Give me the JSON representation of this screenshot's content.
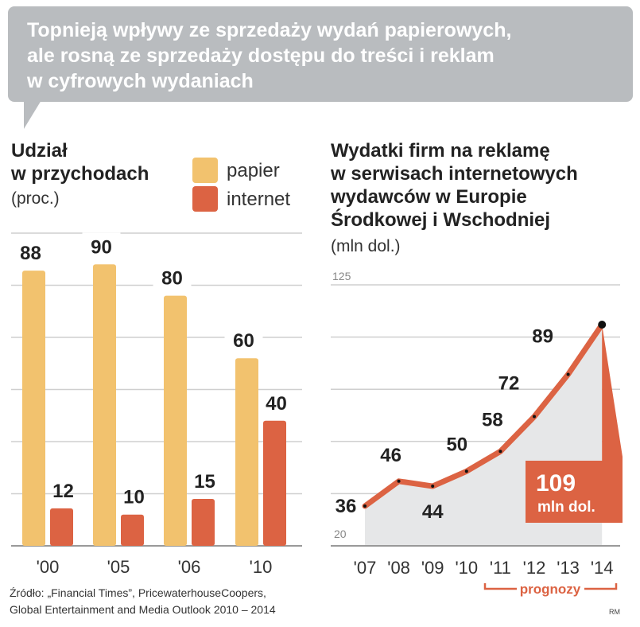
{
  "headline": [
    "Topnieją wpływy ze sprzedaży wydań papierowych,",
    "ale rosną ze sprzedaży dostępu do treści i reklam",
    "w cyfrowych wydaniach"
  ],
  "left": {
    "title": [
      "Udział",
      "w przychodach"
    ],
    "unit": "(proc.)",
    "legend": [
      "papier",
      "internet"
    ]
  },
  "right": {
    "title": [
      "Wydatki firm na reklamę",
      "w serwisach internetowych",
      "wydawców w Europie",
      "Środkowej i Wschodniej"
    ],
    "unit": "(mln dol.)",
    "callout_value": "109",
    "callout_unit": "mln dol.",
    "forecast_label": "prognozy"
  },
  "source": [
    "Źródło: „Financial Times”, PricewaterhouseCoopers,",
    "Global Entertainment and  Media Outlook 2010 – 2014"
  ],
  "credit": "RM",
  "colors": {
    "paper": "#f2c26e",
    "internet": "#dc6343",
    "grid": "#cfcfcf",
    "area": "#e6e7e8"
  },
  "chart_data": [
    {
      "type": "bar",
      "title": "Udział w przychodach",
      "ylabel": "(proc.)",
      "categories": [
        "'00",
        "'05",
        "'06",
        "'10"
      ],
      "ylim": [
        0,
        100
      ],
      "series": [
        {
          "name": "papier",
          "values": [
            88,
            90,
            80,
            60
          ]
        },
        {
          "name": "internet",
          "values": [
            12,
            10,
            15,
            40
          ]
        }
      ]
    },
    {
      "type": "line",
      "title": "Wydatki firm na reklamę w serwisach internetowych wydawców w Europie Środkowej i Wschodniej",
      "ylabel": "(mln dol.)",
      "x": [
        "'07",
        "'08",
        "'09",
        "'10",
        "'11",
        "'12",
        "'13",
        "'14"
      ],
      "values": [
        36,
        46,
        44,
        50,
        58,
        72,
        89,
        109
      ],
      "ylim": [
        20,
        125
      ],
      "yticks": [
        "20",
        "125"
      ],
      "forecast_from": "'11"
    }
  ]
}
